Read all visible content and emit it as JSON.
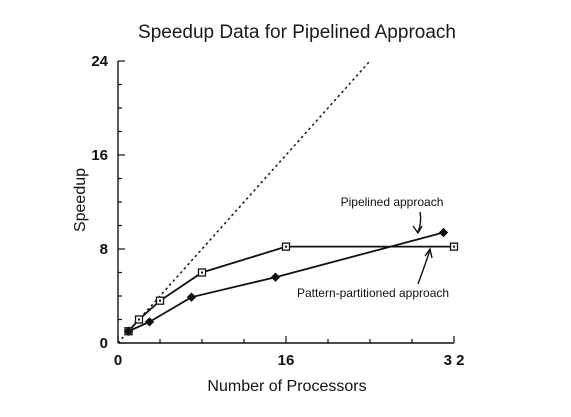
{
  "chart_data": {
    "type": "line",
    "title": "Speedup Data for Pipelined Approach",
    "xlabel": "Number of Processors",
    "ylabel": "Speedup",
    "xlim": [
      0,
      32
    ],
    "ylim": [
      0,
      24
    ],
    "xticks": [
      0,
      16,
      32
    ],
    "xtick_labels": [
      "0",
      "16",
      "3 2"
    ],
    "yticks": [
      0,
      8,
      16,
      24
    ],
    "ytick_labels": [
      "0",
      "8",
      "16",
      "24"
    ],
    "grid": false,
    "series": [
      {
        "name": "Pipelined approach",
        "marker": "open-square",
        "x": [
          1,
          2,
          4,
          8,
          16,
          32
        ],
        "y": [
          1,
          2,
          3.6,
          6,
          8.2,
          8.2
        ]
      },
      {
        "name": "Pattern-partitioned approach",
        "marker": "filled-diamond",
        "x": [
          1,
          3,
          7,
          15,
          31
        ],
        "y": [
          1,
          1.8,
          3.9,
          5.6,
          9.4
        ]
      },
      {
        "name": "",
        "style": "dotted",
        "x": [
          0,
          24
        ],
        "y": [
          0,
          24
        ]
      }
    ],
    "annotations": [
      {
        "text": "Pipelined approach",
        "series": "Pipelined approach"
      },
      {
        "text": "Pattern-partitioned approach",
        "series": "Pattern-partitioned approach"
      }
    ]
  }
}
